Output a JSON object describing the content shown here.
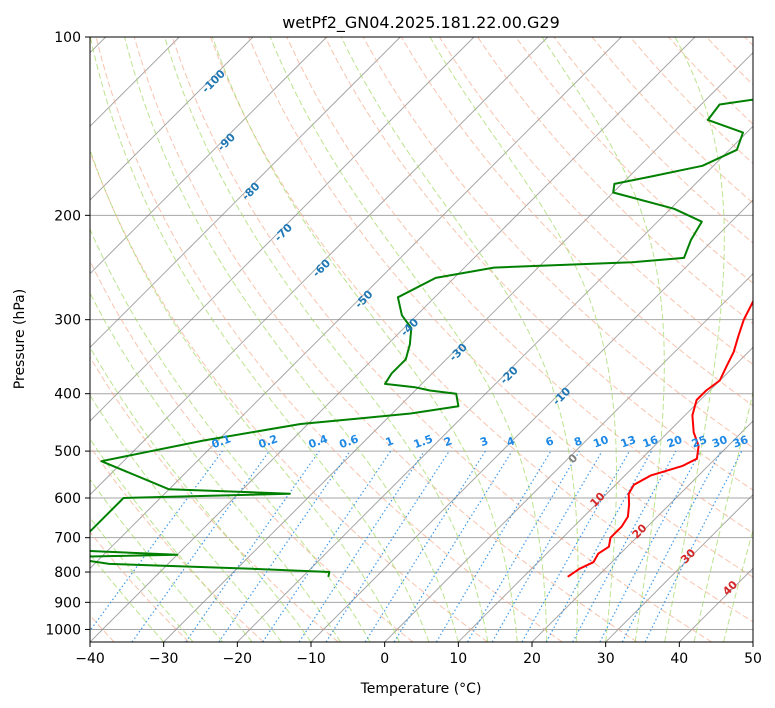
{
  "chart_data": {
    "type": "line",
    "subtype": "skew-t log-p diagram",
    "title": "wetPf2_GN04.2025.181.22.00.G29",
    "xlabel": "Temperature (°C)",
    "ylabel": "Pressure (hPa)",
    "xlim": [
      -40,
      50
    ],
    "ylim": [
      1050,
      100
    ],
    "y_scale": "log",
    "grid": true,
    "x_ticks": [
      -40,
      -30,
      -20,
      -10,
      0,
      10,
      20,
      30,
      40,
      50
    ],
    "x_tick_labels": [
      "−40",
      "−30",
      "−20",
      "−10",
      "0",
      "10",
      "20",
      "30",
      "40",
      "50"
    ],
    "y_ticks": [
      100,
      200,
      300,
      400,
      500,
      600,
      700,
      800,
      900,
      1000
    ],
    "y_tick_labels": [
      "100",
      "200",
      "300",
      "400",
      "500",
      "600",
      "700",
      "800",
      "900",
      "1000"
    ],
    "reference_lines": {
      "isotherm_color": "#808080",
      "dry_adiabat_color": "#f4a582",
      "moist_adiabat_color": "#a6d96a",
      "mixing_ratio_color": "#1e88e5",
      "dry_adiabat_labels": [
        "10",
        "20",
        "30",
        "40"
      ],
      "dry_adiabat_label_color": "#d62728",
      "moist_adiabat_labels": [
        "-100",
        "-90",
        "-80",
        "-70",
        "-60",
        "-50",
        "-40",
        "-30",
        "-20",
        "-10",
        "0"
      ],
      "moist_adiabat_label_color": "#1f77b4",
      "mixing_ratio_labels": [
        "0.1",
        "0.2",
        "0.4",
        "0.6",
        "1",
        "1.5",
        "2",
        "3",
        "4",
        "6",
        "8",
        "10",
        "13",
        "16",
        "20",
        "25",
        "30",
        "36"
      ]
    },
    "series": [
      {
        "color": "#ff0000",
        "points": [
          [
            16.0,
            815
          ],
          [
            16.5,
            790
          ],
          [
            17.5,
            770
          ],
          [
            17.0,
            745
          ],
          [
            17.5,
            725
          ],
          [
            16.5,
            700
          ],
          [
            16.5,
            670
          ],
          [
            16.0,
            645
          ],
          [
            14.5,
            615
          ],
          [
            13.0,
            590
          ],
          [
            12.5,
            570
          ],
          [
            13.5,
            550
          ],
          [
            16.5,
            530
          ],
          [
            17.5,
            515
          ],
          [
            16.0,
            490
          ],
          [
            13.5,
            465
          ],
          [
            11.0,
            435
          ],
          [
            9.5,
            410
          ],
          [
            9.5,
            395
          ],
          [
            10.0,
            380
          ],
          [
            9.0,
            360
          ],
          [
            8.0,
            340
          ],
          [
            6.5,
            320
          ],
          [
            5.0,
            300
          ],
          [
            3.5,
            275
          ],
          [
            2.0,
            250
          ],
          [
            0.0,
            225
          ],
          [
            -2.0,
            205
          ],
          [
            -3.0,
            190
          ],
          [
            -4.0,
            175
          ],
          [
            -5.0,
            160
          ],
          [
            -6.0,
            150
          ],
          [
            -7.0,
            140
          ],
          [
            -6.5,
            130
          ],
          [
            -5.0,
            120
          ],
          [
            -3.5,
            112
          ],
          [
            -1.5,
            105
          ],
          [
            0.0,
            100
          ]
        ]
      },
      {
        "color": "#008000",
        "points": [
          [
            -16.5,
            815
          ],
          [
            -17.0,
            800
          ],
          [
            -28.0,
            790
          ],
          [
            -48.0,
            775
          ],
          [
            -55.0,
            755
          ],
          [
            -40.0,
            748
          ],
          [
            -55.0,
            735
          ],
          [
            -55.0,
            600
          ],
          [
            -33.0,
            590
          ],
          [
            -50.0,
            580
          ],
          [
            -63.0,
            520
          ],
          [
            -52.0,
            480
          ],
          [
            -41.0,
            450
          ],
          [
            -33.5,
            440
          ],
          [
            -27.5,
            432
          ],
          [
            -22.0,
            420
          ],
          [
            -24.0,
            400
          ],
          [
            -28.0,
            395
          ],
          [
            -30.5,
            390
          ],
          [
            -35.0,
            385
          ],
          [
            -35.5,
            370
          ],
          [
            -35.5,
            350
          ],
          [
            -37.0,
            330
          ],
          [
            -39.0,
            310
          ],
          [
            -42.0,
            295
          ],
          [
            -45.0,
            275
          ],
          [
            -42.5,
            255
          ],
          [
            -36.0,
            245
          ],
          [
            -18.0,
            240
          ],
          [
            -11.5,
            236
          ],
          [
            -13.0,
            220
          ],
          [
            -14.0,
            205
          ],
          [
            -19.5,
            195
          ],
          [
            -30.0,
            183
          ],
          [
            -31.0,
            177
          ],
          [
            -27.0,
            172
          ],
          [
            -21.5,
            165
          ],
          [
            -19.0,
            155
          ],
          [
            -20.5,
            145
          ],
          [
            -27.0,
            138
          ],
          [
            -27.5,
            130
          ],
          [
            -19.5,
            125
          ],
          [
            -13.0,
            117
          ],
          [
            -10.5,
            110
          ],
          [
            -11.0,
            104
          ],
          [
            -10.0,
            100
          ]
        ]
      }
    ]
  }
}
